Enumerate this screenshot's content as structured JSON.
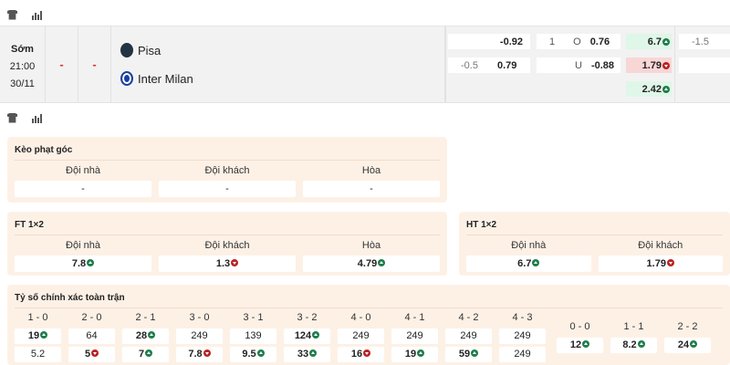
{
  "match": {
    "status": "Sớm",
    "time": "21:00",
    "date": "30/11",
    "score1": "-",
    "score2": "-",
    "home": "Pisa",
    "away": "Inter Milan",
    "odds": {
      "hdp_home": "-0.92",
      "hdp_line": "-0.5",
      "hdp_away": "0.79",
      "ou_line": "1",
      "ou_o": "O",
      "ou_o_val": "0.76",
      "ou_u": "U",
      "ou_u_val": "-0.88",
      "x1": "6.7",
      "x2": "1.79",
      "xx": "2.42",
      "h_line": "-1.5"
    }
  },
  "corner": {
    "title": "Kèo phạt góc",
    "cols": [
      {
        "label": "Đội nhà",
        "value": "-"
      },
      {
        "label": "Đội khách",
        "value": "-"
      },
      {
        "label": "Hòa",
        "value": "-"
      }
    ]
  },
  "ft": {
    "title": "FT 1×2",
    "cols": [
      {
        "label": "Đội nhà",
        "value": "7.8",
        "trend": "up"
      },
      {
        "label": "Đội khách",
        "value": "1.3",
        "trend": "down"
      },
      {
        "label": "Hòa",
        "value": "4.79",
        "trend": "up"
      }
    ]
  },
  "ht": {
    "title": "HT 1×2",
    "cols": [
      {
        "label": "Đội nhà",
        "value": "6.7",
        "trend": "up"
      },
      {
        "label": "Đội khách",
        "value": "1.79",
        "trend": "down"
      }
    ]
  },
  "exact": {
    "title": "Tỷ số chính xác toàn trận",
    "cols": [
      {
        "score": "1 - 0",
        "a": "19",
        "at": "up",
        "b": "5.2",
        "bt": ""
      },
      {
        "score": "2 - 0",
        "a": "64",
        "at": "",
        "b": "5",
        "bt": "down"
      },
      {
        "score": "2 - 1",
        "a": "28",
        "at": "up",
        "b": "7",
        "bt": "up"
      },
      {
        "score": "3 - 0",
        "a": "249",
        "at": "",
        "b": "7.8",
        "bt": "down"
      },
      {
        "score": "3 - 1",
        "a": "139",
        "at": "",
        "b": "9.5",
        "bt": "up"
      },
      {
        "score": "3 - 2",
        "a": "124",
        "at": "up",
        "b": "33",
        "bt": "up"
      },
      {
        "score": "4 - 0",
        "a": "249",
        "at": "",
        "b": "16",
        "bt": "down"
      },
      {
        "score": "4 - 1",
        "a": "249",
        "at": "",
        "b": "19",
        "bt": "up"
      },
      {
        "score": "4 - 2",
        "a": "249",
        "at": "",
        "b": "59",
        "bt": "up"
      },
      {
        "score": "4 - 3",
        "a": "249",
        "at": "",
        "b": "249",
        "bt": ""
      }
    ],
    "draws": [
      {
        "score": "0 - 0",
        "a": "12",
        "at": "up"
      },
      {
        "score": "1 - 1",
        "a": "8.2",
        "at": "up"
      },
      {
        "score": "2 - 2",
        "a": "24",
        "at": "up"
      }
    ]
  }
}
